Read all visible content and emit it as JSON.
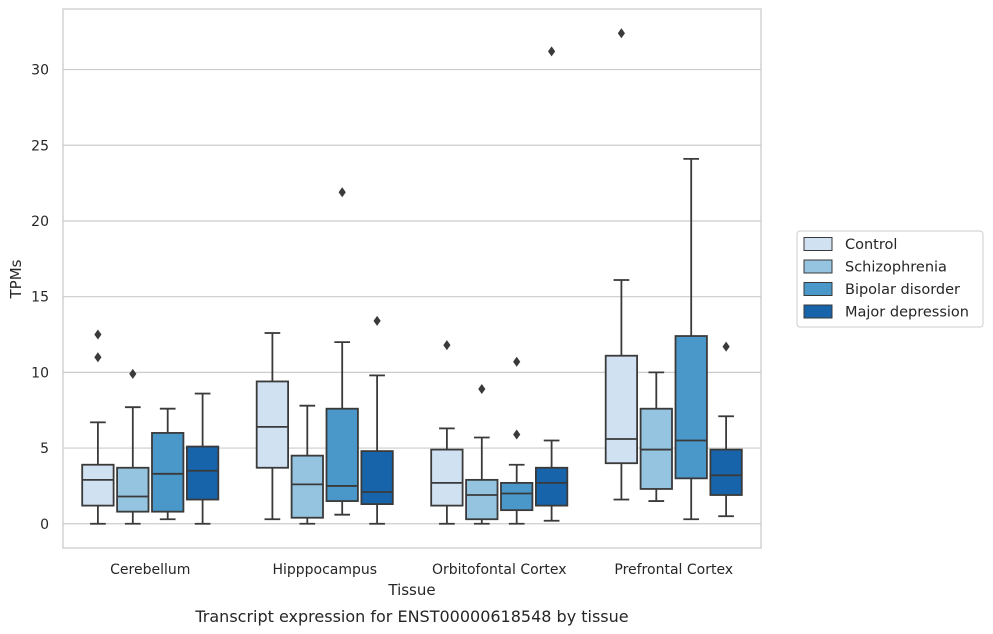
{
  "caption": "Transcript expression for ENST00000618548 by tissue",
  "chart_data": {
    "type": "boxplot",
    "xlabel": "Tissue",
    "ylabel": "TPMs",
    "ylim": [
      -1.6,
      34
    ],
    "yticks": [
      0,
      5,
      10,
      15,
      20,
      25,
      30
    ],
    "grid": "horizontal",
    "legend_position": "right",
    "categories": [
      "Cerebellum",
      "Hipppocampus",
      "Orbitofontal Cortex",
      "Prefrontal Cortex"
    ],
    "series": [
      {
        "name": "Control",
        "color": "#d0e1f2",
        "boxes": [
          {
            "whislo": 0.0,
            "q1": 1.2,
            "med": 2.9,
            "q3": 3.9,
            "whishi": 6.7,
            "fliers": [
              11.0,
              12.5
            ]
          },
          {
            "whislo": 0.3,
            "q1": 3.7,
            "med": 6.4,
            "q3": 9.4,
            "whishi": 12.6,
            "fliers": []
          },
          {
            "whislo": 0.0,
            "q1": 1.2,
            "med": 2.7,
            "q3": 4.9,
            "whishi": 6.3,
            "fliers": [
              11.8
            ]
          },
          {
            "whislo": 1.6,
            "q1": 4.0,
            "med": 5.6,
            "q3": 11.1,
            "whishi": 16.1,
            "fliers": [
              32.4
            ]
          }
        ]
      },
      {
        "name": "Schizophrenia",
        "color": "#94c4df",
        "boxes": [
          {
            "whislo": 0.0,
            "q1": 0.8,
            "med": 1.8,
            "q3": 3.7,
            "whishi": 7.7,
            "fliers": [
              9.9
            ]
          },
          {
            "whislo": 0.0,
            "q1": 0.4,
            "med": 2.6,
            "q3": 4.5,
            "whishi": 7.8,
            "fliers": []
          },
          {
            "whislo": 0.0,
            "q1": 0.3,
            "med": 1.9,
            "q3": 2.9,
            "whishi": 5.7,
            "fliers": [
              8.9
            ]
          },
          {
            "whislo": 1.5,
            "q1": 2.3,
            "med": 4.9,
            "q3": 7.6,
            "whishi": 10.0,
            "fliers": []
          }
        ]
      },
      {
        "name": "Bipolar disorder",
        "color": "#4a98c9",
        "boxes": [
          {
            "whislo": 0.3,
            "q1": 0.8,
            "med": 3.3,
            "q3": 6.0,
            "whishi": 7.6,
            "fliers": []
          },
          {
            "whislo": 0.6,
            "q1": 1.5,
            "med": 2.5,
            "q3": 7.6,
            "whishi": 12.0,
            "fliers": [
              21.9
            ]
          },
          {
            "whislo": 0.0,
            "q1": 0.9,
            "med": 2.0,
            "q3": 2.7,
            "whishi": 3.9,
            "fliers": [
              5.9,
              10.7
            ]
          },
          {
            "whislo": 0.3,
            "q1": 3.0,
            "med": 5.5,
            "q3": 12.4,
            "whishi": 24.1,
            "fliers": []
          }
        ]
      },
      {
        "name": "Major depression",
        "color": "#1764ab",
        "boxes": [
          {
            "whislo": 0.0,
            "q1": 1.6,
            "med": 3.5,
            "q3": 5.1,
            "whishi": 8.6,
            "fliers": []
          },
          {
            "whislo": 0.0,
            "q1": 1.3,
            "med": 2.1,
            "q3": 4.8,
            "whishi": 9.8,
            "fliers": [
              13.4
            ]
          },
          {
            "whislo": 0.2,
            "q1": 1.2,
            "med": 2.7,
            "q3": 3.7,
            "whishi": 5.5,
            "fliers": [
              31.2
            ]
          },
          {
            "whislo": 0.5,
            "q1": 1.9,
            "med": 3.2,
            "q3": 4.9,
            "whishi": 7.1,
            "fliers": [
              11.7
            ]
          }
        ]
      }
    ]
  }
}
